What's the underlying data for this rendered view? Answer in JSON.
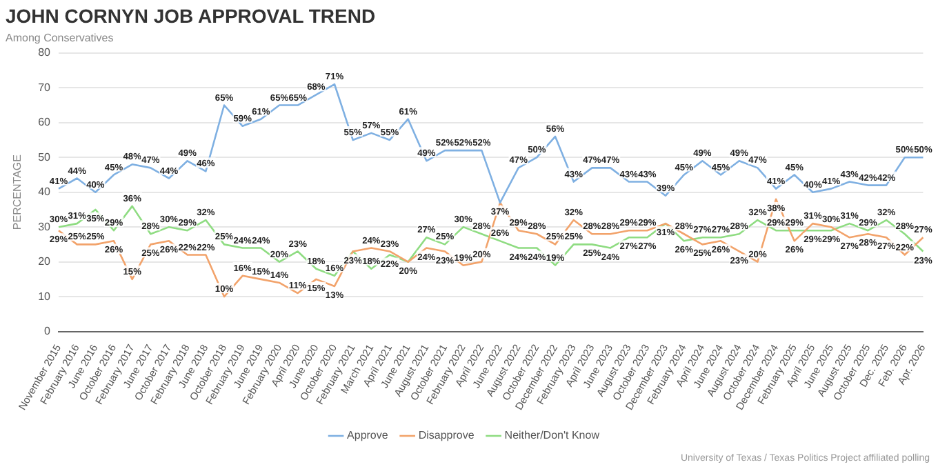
{
  "chart_data": {
    "type": "line",
    "title": "JOHN CORNYN JOB APPROVAL TREND",
    "subtitle": "Among Conservatives",
    "ylabel": "PERCENTAGE",
    "categories": [
      "November 2015",
      "February 2016",
      "June 2016",
      "October 2016",
      "February 2017",
      "June 2017",
      "October 2017",
      "February 2018",
      "June 2018",
      "October 2018",
      "February 2019",
      "June 2019",
      "February 2020",
      "April 2020",
      "June 2020",
      "October 2020",
      "February 2021",
      "March 2021",
      "April 2021",
      "June 2021",
      "August 2021",
      "October 2021",
      "February 2022",
      "April 2022",
      "June 2022",
      "August 2022",
      "October 2022",
      "December 2022",
      "February 2023",
      "April 2023",
      "June 2023",
      "August 2023",
      "October 2023",
      "December 2023",
      "February 2024",
      "April 2024",
      "June 2024",
      "August 2024",
      "October 2024",
      "December 2024",
      "February 2025",
      "April 2025",
      "June 2025",
      "August 2025",
      "October 2025",
      "Dec. 2025",
      "Feb. 2026",
      "Apr. 2026"
    ],
    "series": [
      {
        "name": "Approve",
        "color": "#7fb0e2",
        "values": [
          41,
          44,
          40,
          45,
          48,
          47,
          44,
          49,
          46,
          65,
          59,
          61,
          65,
          65,
          68,
          71,
          55,
          57,
          55,
          61,
          49,
          52,
          52,
          52,
          37,
          47,
          50,
          56,
          43,
          47,
          47,
          43,
          43,
          39,
          45,
          49,
          45,
          49,
          47,
          41,
          45,
          40,
          41,
          43,
          42,
          42,
          50,
          50
        ],
        "value_labels": [
          "41%",
          "44%",
          "40%",
          "45%",
          "48%",
          "47%",
          "44%",
          "49%",
          "46%",
          "65%",
          "59%",
          "61%",
          "65%",
          "65%",
          "68%",
          "71%",
          "55%",
          "57%",
          "55%",
          "61%",
          "49%",
          "52%",
          "52%",
          "52%",
          null,
          "47%",
          "50%",
          "56%",
          "43%",
          "47%",
          "47%",
          "43%",
          "43%",
          "39%",
          "45%",
          "49%",
          "45%",
          "49%",
          "47%",
          "41%",
          "45%",
          "40%",
          "41%",
          "43%",
          "42%",
          "42%",
          "50%",
          "50%"
        ]
      },
      {
        "name": "Disapprove",
        "color": "#f2a36b",
        "values": [
          29,
          25,
          25,
          26,
          15,
          25,
          26,
          22,
          22,
          10,
          16,
          15,
          14,
          11,
          15,
          13,
          23,
          24,
          23,
          20,
          24,
          23,
          19,
          20,
          37,
          29,
          28,
          25,
          32,
          28,
          28,
          29,
          29,
          31,
          28,
          25,
          26,
          23,
          20,
          38,
          26,
          31,
          30,
          27,
          28,
          27,
          22,
          27
        ],
        "value_labels": [
          "29%",
          "25%",
          "25%",
          "26%",
          "15%",
          "25%",
          "26%",
          "22%",
          "22%",
          "10%",
          "16%",
          "15%",
          "14%",
          "11%",
          "15%",
          "13%",
          null,
          "24%",
          "23%",
          null,
          "24%",
          "23%",
          "19%",
          "20%",
          "37%",
          "29%",
          "28%",
          "25%",
          "32%",
          "28%",
          "28%",
          "29%",
          "29%",
          null,
          "28%",
          "25%",
          "26%",
          "23%",
          "20%",
          "38%",
          "26%",
          "31%",
          "30%",
          "27%",
          "28%",
          "27%",
          "22%",
          "27%"
        ]
      },
      {
        "name": "Neither/Don't Know",
        "color": "#8fdc82",
        "values": [
          30,
          31,
          35,
          29,
          36,
          28,
          30,
          29,
          32,
          25,
          24,
          24,
          20,
          23,
          18,
          16,
          23,
          18,
          22,
          20,
          27,
          25,
          30,
          28,
          26,
          24,
          24,
          19,
          25,
          25,
          24,
          27,
          27,
          31,
          26,
          27,
          27,
          28,
          32,
          29,
          29,
          29,
          29,
          31,
          29,
          32,
          28,
          23
        ],
        "value_labels": [
          "30%",
          "31%",
          "35%",
          "29%",
          "36%",
          "28%",
          "30%",
          "29%",
          "32%",
          "25%",
          "24%",
          "24%",
          "20%",
          "23%",
          "18%",
          "16%",
          "23%",
          "18%",
          "22%",
          "20%",
          "27%",
          "25%",
          "30%",
          "28%",
          "26%",
          "24%",
          "24%",
          "19%",
          "25%",
          "25%",
          "24%",
          "27%",
          "27%",
          "31%",
          "26%",
          "27%",
          "27%",
          "28%",
          "32%",
          "29%",
          "29%",
          "29%",
          "29%",
          "31%",
          "29%",
          "32%",
          "28%",
          "23%"
        ]
      }
    ],
    "ylim": [
      0,
      80
    ],
    "yticks": [
      0,
      10,
      20,
      30,
      40,
      50,
      60,
      70,
      80
    ],
    "grid": "y",
    "legend": "bottom",
    "marker": "none",
    "annotations": [
      "University of Texas / Texas Politics Project affiliated polling"
    ]
  }
}
